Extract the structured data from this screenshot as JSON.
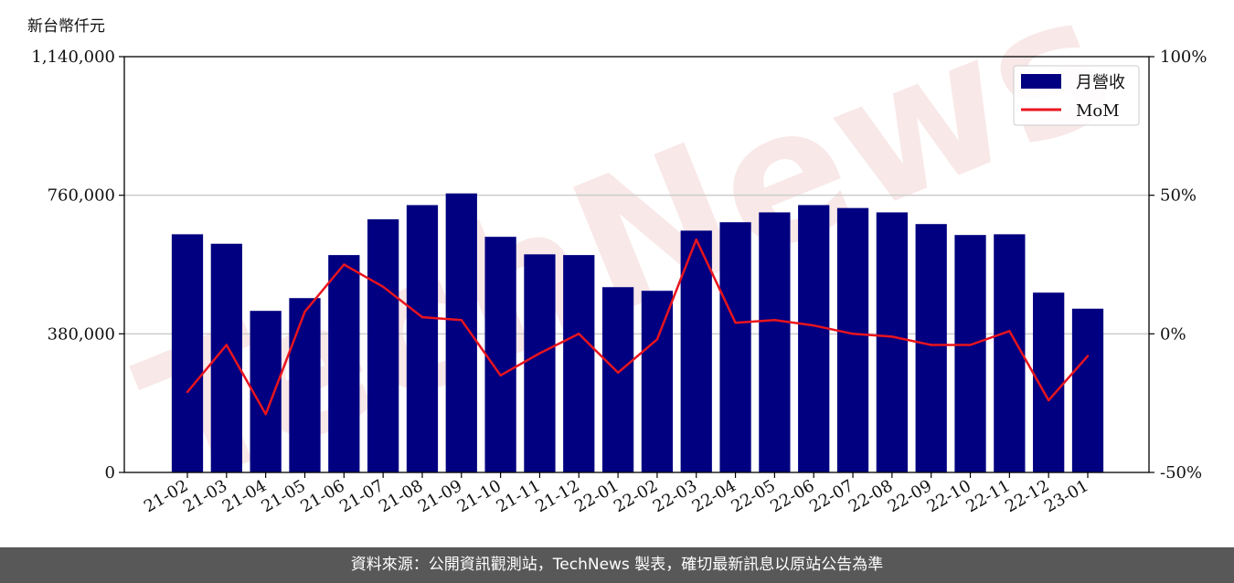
{
  "unit_label": "新台幣仟元",
  "footer_text": "資料來源：公開資訊觀測站，TechNews 製表，確切最新訊息以原站公告為準",
  "watermark_text": "TechNews",
  "colors": {
    "bar": "#000080",
    "line": "#e8141e",
    "grid": "#cccccc",
    "footer_bg": "#585858",
    "watermark": "#f5d6d6"
  },
  "chart_data": {
    "type": "bar",
    "categories": [
      "21-02",
      "21-03",
      "21-04",
      "21-05",
      "21-06",
      "21-07",
      "21-08",
      "21-09",
      "21-10",
      "21-11",
      "21-12",
      "22-01",
      "22-02",
      "22-03",
      "22-04",
      "22-05",
      "22-06",
      "22-07",
      "22-08",
      "22-09",
      "22-10",
      "22-11",
      "22-12",
      "23-01"
    ],
    "series": [
      {
        "name": "月營收",
        "axis": "left",
        "type": "bar",
        "values": [
          653000,
          627000,
          443000,
          478000,
          596000,
          694000,
          733000,
          765000,
          646000,
          598000,
          596000,
          508000,
          498000,
          663000,
          686000,
          713000,
          733000,
          725000,
          713000,
          681000,
          651000,
          653000,
          493000,
          449000
        ]
      },
      {
        "name": "MoM",
        "axis": "right",
        "type": "line",
        "values": [
          -21,
          -4,
          -29,
          8,
          25,
          17,
          6,
          5,
          -15,
          -7,
          0,
          -14,
          -2,
          34,
          4,
          5,
          3,
          0,
          -1,
          -4,
          -4,
          1,
          -24,
          -8
        ]
      }
    ],
    "left_axis": {
      "ylim": [
        0,
        1140000
      ],
      "ticks": [
        0,
        380000,
        760000,
        1140000
      ],
      "tick_labels": [
        "0",
        "380,000",
        "760,000",
        "1,140,000"
      ]
    },
    "right_axis": {
      "ylim": [
        -50,
        100
      ],
      "ticks": [
        -50,
        0,
        50,
        100
      ],
      "tick_labels": [
        "-50%",
        "0%",
        "50%",
        "100%"
      ]
    },
    "grid": "horizontal",
    "legend": "top-right"
  }
}
